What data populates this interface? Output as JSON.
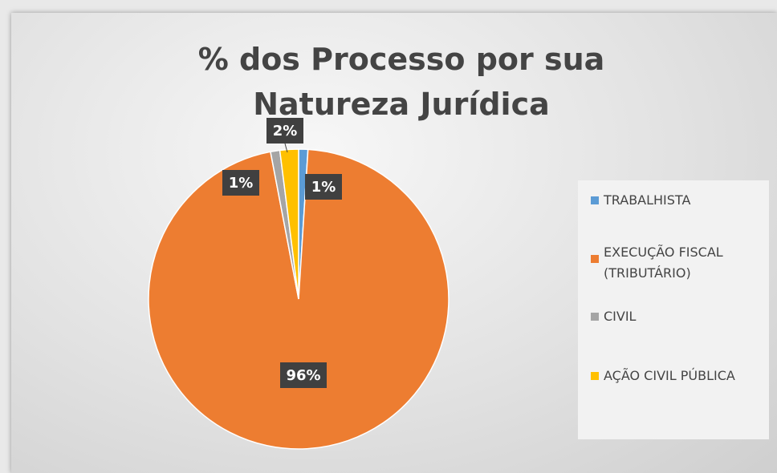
{
  "chart_data": {
    "type": "pie",
    "title": "% dos Processo por sua Natureza Jurídica",
    "categories": [
      "TRABALHISTA",
      "EXECUÇÃO FISCAL (TRIBUTÁRIO)",
      "CIVIL",
      "AÇÃO CIVIL PÚBLICA"
    ],
    "values": [
      1,
      96,
      1,
      2
    ],
    "value_labels": [
      "1%",
      "96%",
      "1%",
      "2%"
    ],
    "colors": [
      "#5b9bd5",
      "#ed7d31",
      "#a5a5a5",
      "#ffc000"
    ],
    "legend": "right"
  }
}
